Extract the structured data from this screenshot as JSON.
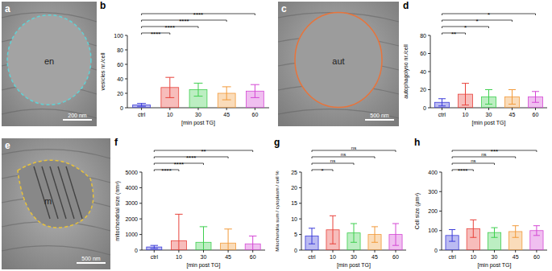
{
  "images": [
    {
      "title": "a",
      "label": "en",
      "scale_bar": "200 nm",
      "color": "#5fd3d6"
    },
    {
      "title": "c",
      "label": "aut",
      "scale_bar": "500 nm",
      "color": "#e8743b"
    },
    {
      "title": "e",
      "label": "m",
      "scale_bar": "500 nm",
      "color": "#e8c23a"
    }
  ],
  "chart_data": [
    {
      "type": "bar",
      "title": "b",
      "y_label": "vesicles nr./cell",
      "x_label": "[min post TG]",
      "categories": [
        "ctrl",
        "10",
        "30",
        "45",
        "60"
      ],
      "values": [
        4,
        28,
        25,
        20,
        23
      ],
      "errors": [
        2,
        14,
        9,
        9,
        9
      ],
      "colors": [
        "#3b3bd9",
        "#e8423b",
        "#3fcf4f",
        "#f29a3a",
        "#d448d4"
      ],
      "ylim": [
        0,
        100
      ],
      "yticks": [
        0,
        20,
        40,
        60,
        80,
        100
      ],
      "significance": [
        {
          "from": 0,
          "to": 1,
          "label": "****"
        },
        {
          "from": 0,
          "to": 2,
          "label": "****"
        },
        {
          "from": 0,
          "to": 3,
          "label": "****"
        },
        {
          "from": 0,
          "to": 4,
          "label": "****"
        }
      ]
    },
    {
      "type": "bar",
      "title": "d",
      "y_label": "autophagolyso nr./cell",
      "x_label": "[min post TG]",
      "categories": [
        "ctrl",
        "10",
        "30",
        "45",
        "60"
      ],
      "values": [
        6,
        15,
        12,
        12,
        12
      ],
      "errors": [
        4,
        12,
        8,
        8,
        6
      ],
      "colors": [
        "#3b3bd9",
        "#e8423b",
        "#3fcf4f",
        "#f29a3a",
        "#d448d4"
      ],
      "ylim": [
        0,
        80
      ],
      "yticks": [
        0,
        20,
        40,
        60,
        80
      ],
      "significance": [
        {
          "from": 0,
          "to": 1,
          "label": "**"
        },
        {
          "from": 0,
          "to": 2,
          "label": "*"
        },
        {
          "from": 0,
          "to": 3,
          "label": "*"
        },
        {
          "from": 0,
          "to": 4,
          "label": "*"
        }
      ]
    },
    {
      "type": "bar",
      "title": "f",
      "y_label": "mitochondrial size (nm²)",
      "x_label": "[min post TG]",
      "categories": [
        "ctrl",
        "10",
        "30",
        "45",
        "60"
      ],
      "values": [
        200,
        600,
        500,
        450,
        400
      ],
      "errors": [
        100,
        1700,
        1000,
        900,
        500
      ],
      "colors": [
        "#3b3bd9",
        "#e8423b",
        "#3fcf4f",
        "#f29a3a",
        "#d448d4"
      ],
      "ylim": [
        0,
        5000
      ],
      "yticks": [
        0,
        1000,
        2000,
        3000,
        4000,
        5000
      ],
      "significance": [
        {
          "from": 0,
          "to": 1,
          "label": "****"
        },
        {
          "from": 0,
          "to": 2,
          "label": "****"
        },
        {
          "from": 0,
          "to": 3,
          "label": "****"
        },
        {
          "from": 0,
          "to": 4,
          "label": "**"
        }
      ]
    },
    {
      "type": "bar",
      "title": "g",
      "y_label": "Mitochondria sum / cytoplasm / cell %",
      "x_label": "[min post TG]",
      "categories": [
        "ctrl",
        "10",
        "30",
        "45",
        "60"
      ],
      "values": [
        4.5,
        6.5,
        5.5,
        5,
        5
      ],
      "errors": [
        2.5,
        4.5,
        3,
        2.5,
        3.5
      ],
      "colors": [
        "#3b3bd9",
        "#e8423b",
        "#3fcf4f",
        "#f29a3a",
        "#d448d4"
      ],
      "ylim": [
        0,
        25
      ],
      "yticks": [
        0,
        5,
        10,
        15,
        20,
        25
      ],
      "significance": [
        {
          "from": 0,
          "to": 1,
          "label": "*"
        },
        {
          "from": 0,
          "to": 2,
          "label": "ns"
        },
        {
          "from": 0,
          "to": 3,
          "label": "ns"
        },
        {
          "from": 0,
          "to": 4,
          "label": "ns"
        }
      ]
    },
    {
      "type": "bar",
      "title": "h",
      "y_label": "Cell size (µm²)",
      "x_label": "[min post TG]",
      "categories": [
        "ctrl",
        "10",
        "30",
        "45",
        "60"
      ],
      "values": [
        75,
        110,
        90,
        95,
        100
      ],
      "errors": [
        30,
        45,
        25,
        30,
        25
      ],
      "colors": [
        "#3b3bd9",
        "#e8423b",
        "#3fcf4f",
        "#f29a3a",
        "#d448d4"
      ],
      "ylim": [
        0,
        400
      ],
      "yticks": [
        0,
        100,
        200,
        300,
        400
      ],
      "significance": [
        {
          "from": 0,
          "to": 1,
          "label": "****"
        },
        {
          "from": 0,
          "to": 2,
          "label": "ns"
        },
        {
          "from": 0,
          "to": 3,
          "label": "ns"
        },
        {
          "from": 0,
          "to": 4,
          "label": "***"
        }
      ]
    }
  ]
}
